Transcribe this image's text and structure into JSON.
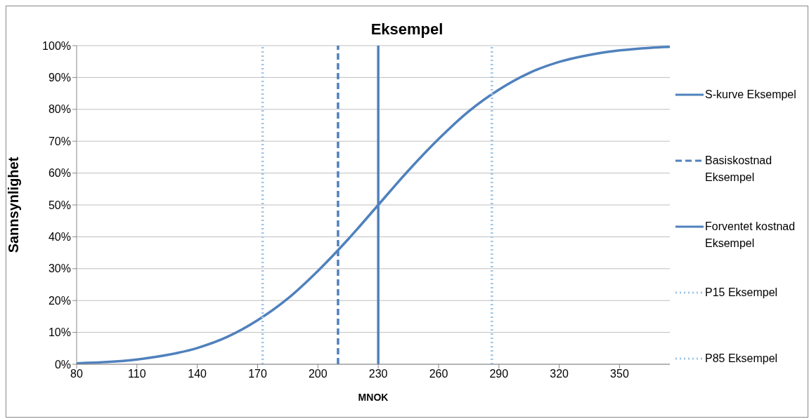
{
  "chart_data": {
    "type": "line",
    "title": "Eksempel",
    "xlabel": "MNOK",
    "ylabel": "Sannsynlighet",
    "xlim": [
      80,
      375
    ],
    "xticks": [
      80,
      110,
      140,
      170,
      200,
      230,
      260,
      290,
      320,
      350
    ],
    "ylim": [
      0,
      100
    ],
    "yticks": [
      {
        "value": 0,
        "label": "0%"
      },
      {
        "value": 10,
        "label": "10%"
      },
      {
        "value": 20,
        "label": "20%"
      },
      {
        "value": 30,
        "label": "30%"
      },
      {
        "value": 40,
        "label": "40%"
      },
      {
        "value": 50,
        "label": "50%"
      },
      {
        "value": 60,
        "label": "60%"
      },
      {
        "value": 70,
        "label": "70%"
      },
      {
        "value": 80,
        "label": "80%"
      },
      {
        "value": 90,
        "label": "90%"
      },
      {
        "value": 100,
        "label": "100%"
      }
    ],
    "grid": "y",
    "legend": "right",
    "marker": "none",
    "series": [
      {
        "name": "S-kurve Eksempel",
        "color": "#4f81bd",
        "line_style": "solid",
        "x": [
          80,
          95,
          110,
          125,
          140,
          155,
          170,
          185,
          200,
          215,
          230,
          245,
          260,
          275,
          290,
          305,
          320,
          335,
          350,
          365,
          375
        ],
        "values": [
          0.3,
          0.7,
          1.5,
          2.9,
          5.1,
          8.6,
          13.8,
          20.6,
          29.3,
          39.2,
          50,
          60.8,
          70.7,
          79.4,
          86.2,
          91.4,
          94.9,
          97.1,
          98.5,
          99.3,
          99.6
        ]
      },
      {
        "name": "Basiskostnad Eksempel",
        "color": "#4f81bd",
        "line_style": "dashed",
        "x": [
          210,
          210
        ],
        "values": [
          0,
          100
        ]
      },
      {
        "name": "Forventet kostnad Eksempel",
        "color": "#4f81bd",
        "line_style": "solid",
        "x": [
          230,
          230
        ],
        "values": [
          0,
          100
        ]
      },
      {
        "name": "P15 Eksempel",
        "color": "#9dc3e6",
        "line_style": "dotted",
        "x": [
          172.5,
          172.5
        ],
        "values": [
          0,
          100
        ]
      },
      {
        "name": "P85 Eksempel",
        "color": "#9dc3e6",
        "line_style": "dotted",
        "x": [
          286.5,
          286.5
        ],
        "values": [
          0,
          100
        ]
      }
    ]
  }
}
